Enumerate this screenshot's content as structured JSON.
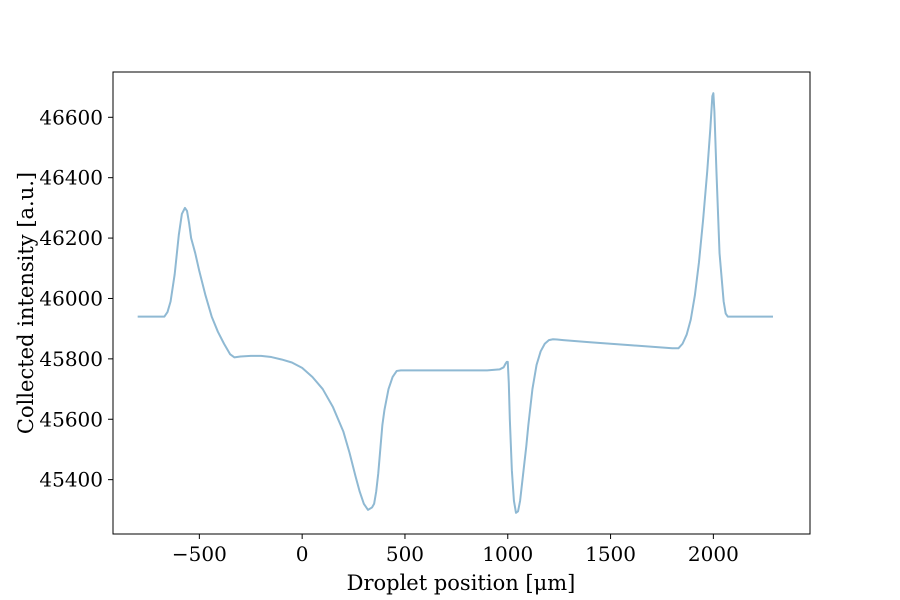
{
  "chart_data": {
    "type": "line",
    "title": "",
    "xlabel": "Droplet position [μm]",
    "ylabel": "Collected intensity [a.u.]",
    "xlim": [
      -920,
      2470
    ],
    "ylim": [
      45220,
      46750
    ],
    "grid": false,
    "legend": "none",
    "x_ticks": [
      -500,
      0,
      500,
      1000,
      1500,
      2000
    ],
    "x_tick_labels": [
      "−500",
      "0",
      "500",
      "1000",
      "1500",
      "2000"
    ],
    "y_ticks": [
      45400,
      45600,
      45800,
      46000,
      46200,
      46400,
      46600
    ],
    "y_tick_labels": [
      "45400",
      "45600",
      "45800",
      "46000",
      "46200",
      "46400",
      "46600"
    ],
    "series": [
      {
        "color": "#8fb9d3",
        "x": [
          -800,
          -670,
          -655,
          -640,
          -620,
          -600,
          -585,
          -570,
          -560,
          -550,
          -540,
          -530,
          -520,
          -500,
          -470,
          -440,
          -410,
          -380,
          -350,
          -330,
          -300,
          -250,
          -200,
          -150,
          -100,
          -50,
          0,
          50,
          100,
          150,
          200,
          230,
          260,
          280,
          300,
          320,
          340,
          350,
          360,
          370,
          380,
          390,
          400,
          420,
          440,
          460,
          480,
          500,
          600,
          700,
          800,
          900,
          960,
          980,
          990,
          995,
          1000,
          1005,
          1010,
          1020,
          1030,
          1040,
          1050,
          1060,
          1070,
          1080,
          1090,
          1100,
          1120,
          1140,
          1160,
          1180,
          1200,
          1220,
          1240,
          1270,
          1400,
          1600,
          1800,
          1830,
          1850,
          1870,
          1890,
          1910,
          1930,
          1950,
          1970,
          1985,
          1995,
          2000,
          2005,
          2015,
          2030,
          2050,
          2060,
          2070,
          2080,
          2100,
          2200,
          2290
        ],
        "y": [
          45940,
          45940,
          45955,
          45990,
          46080,
          46210,
          46280,
          46300,
          46290,
          46250,
          46200,
          46175,
          46150,
          46090,
          46010,
          45940,
          45890,
          45850,
          45815,
          45805,
          45808,
          45810,
          45810,
          45806,
          45798,
          45788,
          45770,
          45740,
          45700,
          45640,
          45560,
          45490,
          45410,
          45360,
          45320,
          45300,
          45308,
          45320,
          45360,
          45420,
          45500,
          45580,
          45630,
          45700,
          45740,
          45760,
          45762,
          45762,
          45762,
          45762,
          45762,
          45762,
          45765,
          45772,
          45785,
          45790,
          45790,
          45720,
          45600,
          45430,
          45330,
          45290,
          45295,
          45330,
          45390,
          45450,
          45510,
          45580,
          45700,
          45780,
          45825,
          45850,
          45862,
          45865,
          45864,
          45862,
          45855,
          45845,
          45835,
          45835,
          45850,
          45880,
          45930,
          46010,
          46120,
          46260,
          46420,
          46560,
          46670,
          46680,
          46620,
          46420,
          46150,
          45990,
          45950,
          45940,
          45940,
          45940,
          45940,
          45940
        ]
      }
    ]
  }
}
